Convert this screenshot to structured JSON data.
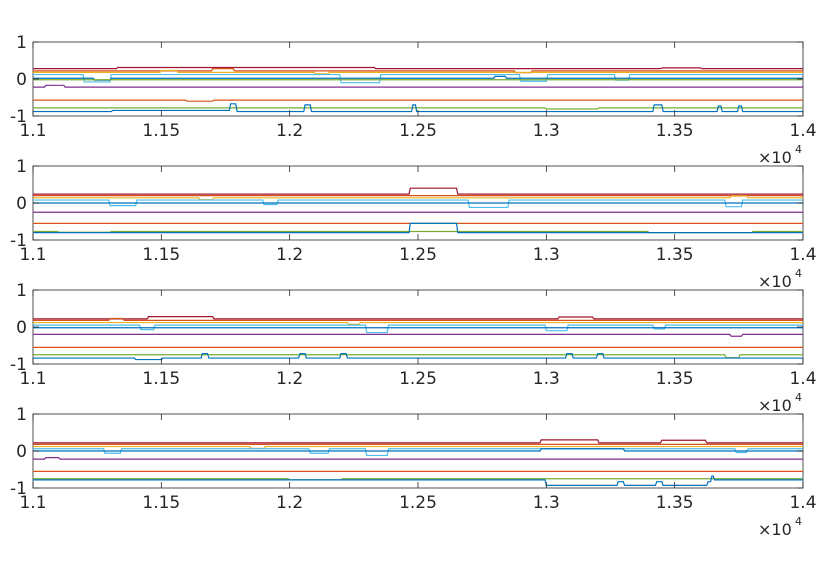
{
  "chart_data": [
    {
      "type": "line",
      "xlim": [
        11000,
        14000
      ],
      "ylim": [
        -1,
        1
      ],
      "x_ticks": [
        "1.1",
        "1.15",
        "1.2",
        "1.25",
        "1.3",
        "1.35",
        "1.4"
      ],
      "y_ticks": [
        "-1",
        "0",
        "1"
      ],
      "x_exponent": {
        "base": "×10",
        "power": "4"
      },
      "grid": false,
      "series": [
        {
          "color": "#A2142F",
          "base": 0.28,
          "events": [
            [
              11330,
              12330,
              0.03
            ],
            [
              13450,
              13600,
              0.02
            ]
          ]
        },
        {
          "color": "#D95319",
          "base": 0.22,
          "events": [
            [
              11700,
              11780,
              0.06
            ],
            [
              12880,
              12940,
              -0.05
            ]
          ]
        },
        {
          "color": "#EDB120",
          "base": 0.18,
          "events": [
            [
              11500,
              11560,
              0.05
            ],
            [
              12100,
              12150,
              -0.04
            ]
          ]
        },
        {
          "color": "#4DBEEE",
          "base": 0.12,
          "events": [
            [
              11200,
              11300,
              -0.2
            ],
            [
              12200,
              12350,
              -0.22
            ],
            [
              12900,
              13000,
              -0.18
            ],
            [
              13270,
              13320,
              -0.15
            ]
          ]
        },
        {
          "color": "#0072BD",
          "base": 0.02,
          "events": [
            [
              11240,
              11300,
              -0.05
            ],
            [
              12800,
              12840,
              0.05
            ]
          ]
        },
        {
          "color": "#77AC30",
          "base": -0.02,
          "events": []
        },
        {
          "color": "#7E2F8E",
          "base": -0.22,
          "events": [
            [
              11050,
              11120,
              0.05
            ]
          ]
        },
        {
          "color": "#D95319",
          "base": -0.57,
          "events": [
            [
              11600,
              11700,
              -0.03
            ]
          ]
        },
        {
          "color": "#77AC30",
          "base": -0.78,
          "events": [
            [
              13000,
              13200,
              -0.03
            ]
          ]
        },
        {
          "color": "#0072BD",
          "base": -0.88,
          "events": [
            [
              11310,
              11790,
              0.03
            ],
            [
              11770,
              11790,
              0.18
            ],
            [
              12060,
              12080,
              0.18
            ],
            [
              12480,
              12490,
              0.18
            ],
            [
              13420,
              13450,
              0.18
            ],
            [
              13670,
              13680,
              0.15
            ],
            [
              13750,
              13760,
              0.15
            ]
          ]
        }
      ]
    },
    {
      "type": "line",
      "xlim": [
        11000,
        14000
      ],
      "ylim": [
        -1,
        1
      ],
      "x_ticks": [
        "1.1",
        "1.15",
        "1.2",
        "1.25",
        "1.3",
        "1.35",
        "1.4"
      ],
      "y_ticks": [
        "-1",
        "0",
        "1"
      ],
      "x_exponent": {
        "base": "×10",
        "power": "4"
      },
      "grid": false,
      "series": [
        {
          "color": "#A2142F",
          "base": 0.24,
          "events": [
            [
              12470,
              12650,
              0.16
            ]
          ]
        },
        {
          "color": "#D95319",
          "base": 0.2,
          "events": []
        },
        {
          "color": "#EDB120",
          "base": 0.14,
          "events": [
            [
              11650,
              11700,
              -0.05
            ],
            [
              13720,
              13780,
              0.05
            ]
          ]
        },
        {
          "color": "#4DBEEE",
          "base": 0.08,
          "events": [
            [
              11300,
              11400,
              -0.15
            ],
            [
              11900,
              11950,
              -0.12
            ],
            [
              12700,
              12850,
              -0.2
            ],
            [
              13700,
              13760,
              -0.18
            ]
          ]
        },
        {
          "color": "#0072BD",
          "base": 0.0,
          "events": []
        },
        {
          "color": "#7E2F8E",
          "base": -0.25,
          "events": []
        },
        {
          "color": "#D95319",
          "base": -0.55,
          "events": []
        },
        {
          "color": "#77AC30",
          "base": -0.77,
          "events": [
            [
              11100,
              11300,
              -0.02
            ],
            [
              13400,
              13800,
              -0.03
            ]
          ]
        },
        {
          "color": "#0072BD",
          "base": -0.8,
          "events": [
            [
              12470,
              12650,
              0.25
            ]
          ]
        }
      ]
    },
    {
      "type": "line",
      "xlim": [
        11000,
        14000
      ],
      "ylim": [
        -1,
        1
      ],
      "x_ticks": [
        "1.1",
        "1.15",
        "1.2",
        "1.25",
        "1.3",
        "1.35",
        "1.4"
      ],
      "y_ticks": [
        "-1",
        "0",
        "1"
      ],
      "x_exponent": {
        "base": "×10",
        "power": "4"
      },
      "grid": false,
      "series": [
        {
          "color": "#A2142F",
          "base": 0.22,
          "events": [
            [
              11450,
              11700,
              0.06
            ],
            [
              13050,
              13180,
              0.05
            ]
          ]
        },
        {
          "color": "#D95319",
          "base": 0.18,
          "events": [
            [
              11300,
              11350,
              0.05
            ]
          ]
        },
        {
          "color": "#EDB120",
          "base": 0.12,
          "events": [
            [
              12230,
              12270,
              -0.05
            ]
          ]
        },
        {
          "color": "#4DBEEE",
          "base": 0.05,
          "events": [
            [
              11420,
              11470,
              -0.12
            ],
            [
              12300,
              12380,
              -0.2
            ],
            [
              13000,
              13080,
              -0.15
            ],
            [
              13420,
              13460,
              -0.1
            ]
          ]
        },
        {
          "color": "#0072BD",
          "base": -0.02,
          "events": []
        },
        {
          "color": "#7E2F8E",
          "base": -0.2,
          "events": [
            [
              13720,
              13760,
              -0.05
            ]
          ]
        },
        {
          "color": "#D95319",
          "base": -0.55,
          "events": []
        },
        {
          "color": "#77AC30",
          "base": -0.75,
          "events": [
            [
              13700,
              13750,
              -0.08
            ]
          ]
        },
        {
          "color": "#0072BD",
          "base": -0.84,
          "events": [
            [
              11400,
              11500,
              -0.04
            ],
            [
              11660,
              11680,
              0.12
            ],
            [
              12040,
              12060,
              0.12
            ],
            [
              12200,
              12220,
              0.12
            ],
            [
              13080,
              13100,
              0.12
            ],
            [
              13200,
              13220,
              0.12
            ]
          ]
        }
      ]
    },
    {
      "type": "line",
      "xlim": [
        11000,
        14000
      ],
      "ylim": [
        -1,
        1
      ],
      "x_ticks": [
        "1.1",
        "1.15",
        "1.2",
        "1.25",
        "1.3",
        "1.35",
        "1.4"
      ],
      "y_ticks": [
        "-1",
        "0",
        "1"
      ],
      "x_exponent": {
        "base": "×10",
        "power": "4"
      },
      "grid": false,
      "series": [
        {
          "color": "#A2142F",
          "base": 0.22,
          "events": [
            [
              12980,
              13200,
              0.08
            ],
            [
              13450,
              13620,
              0.07
            ]
          ]
        },
        {
          "color": "#D95319",
          "base": 0.18,
          "events": []
        },
        {
          "color": "#EDB120",
          "base": 0.12,
          "events": [
            [
              11850,
              11900,
              -0.05
            ]
          ]
        },
        {
          "color": "#4DBEEE",
          "base": 0.06,
          "events": [
            [
              11280,
              11340,
              -0.12
            ],
            [
              12080,
              12150,
              -0.12
            ],
            [
              12300,
              12380,
              -0.18
            ],
            [
              13740,
              13780,
              -0.1
            ]
          ]
        },
        {
          "color": "#0072BD",
          "base": 0.0,
          "events": [
            [
              12980,
              13300,
              0.06
            ]
          ]
        },
        {
          "color": "#7E2F8E",
          "base": -0.22,
          "events": [
            [
              11050,
              11100,
              0.04
            ]
          ]
        },
        {
          "color": "#D95319",
          "base": -0.55,
          "events": []
        },
        {
          "color": "#77AC30",
          "base": -0.75,
          "events": [
            [
              12000,
              12200,
              -0.03
            ]
          ]
        },
        {
          "color": "#0072BD",
          "base": -0.78,
          "events": [
            [
              13000,
              13640,
              -0.15
            ],
            [
              13280,
              13300,
              0.1
            ],
            [
              13430,
              13450,
              0.1
            ],
            [
              13630,
              13650,
              0.1
            ]
          ]
        }
      ]
    }
  ]
}
